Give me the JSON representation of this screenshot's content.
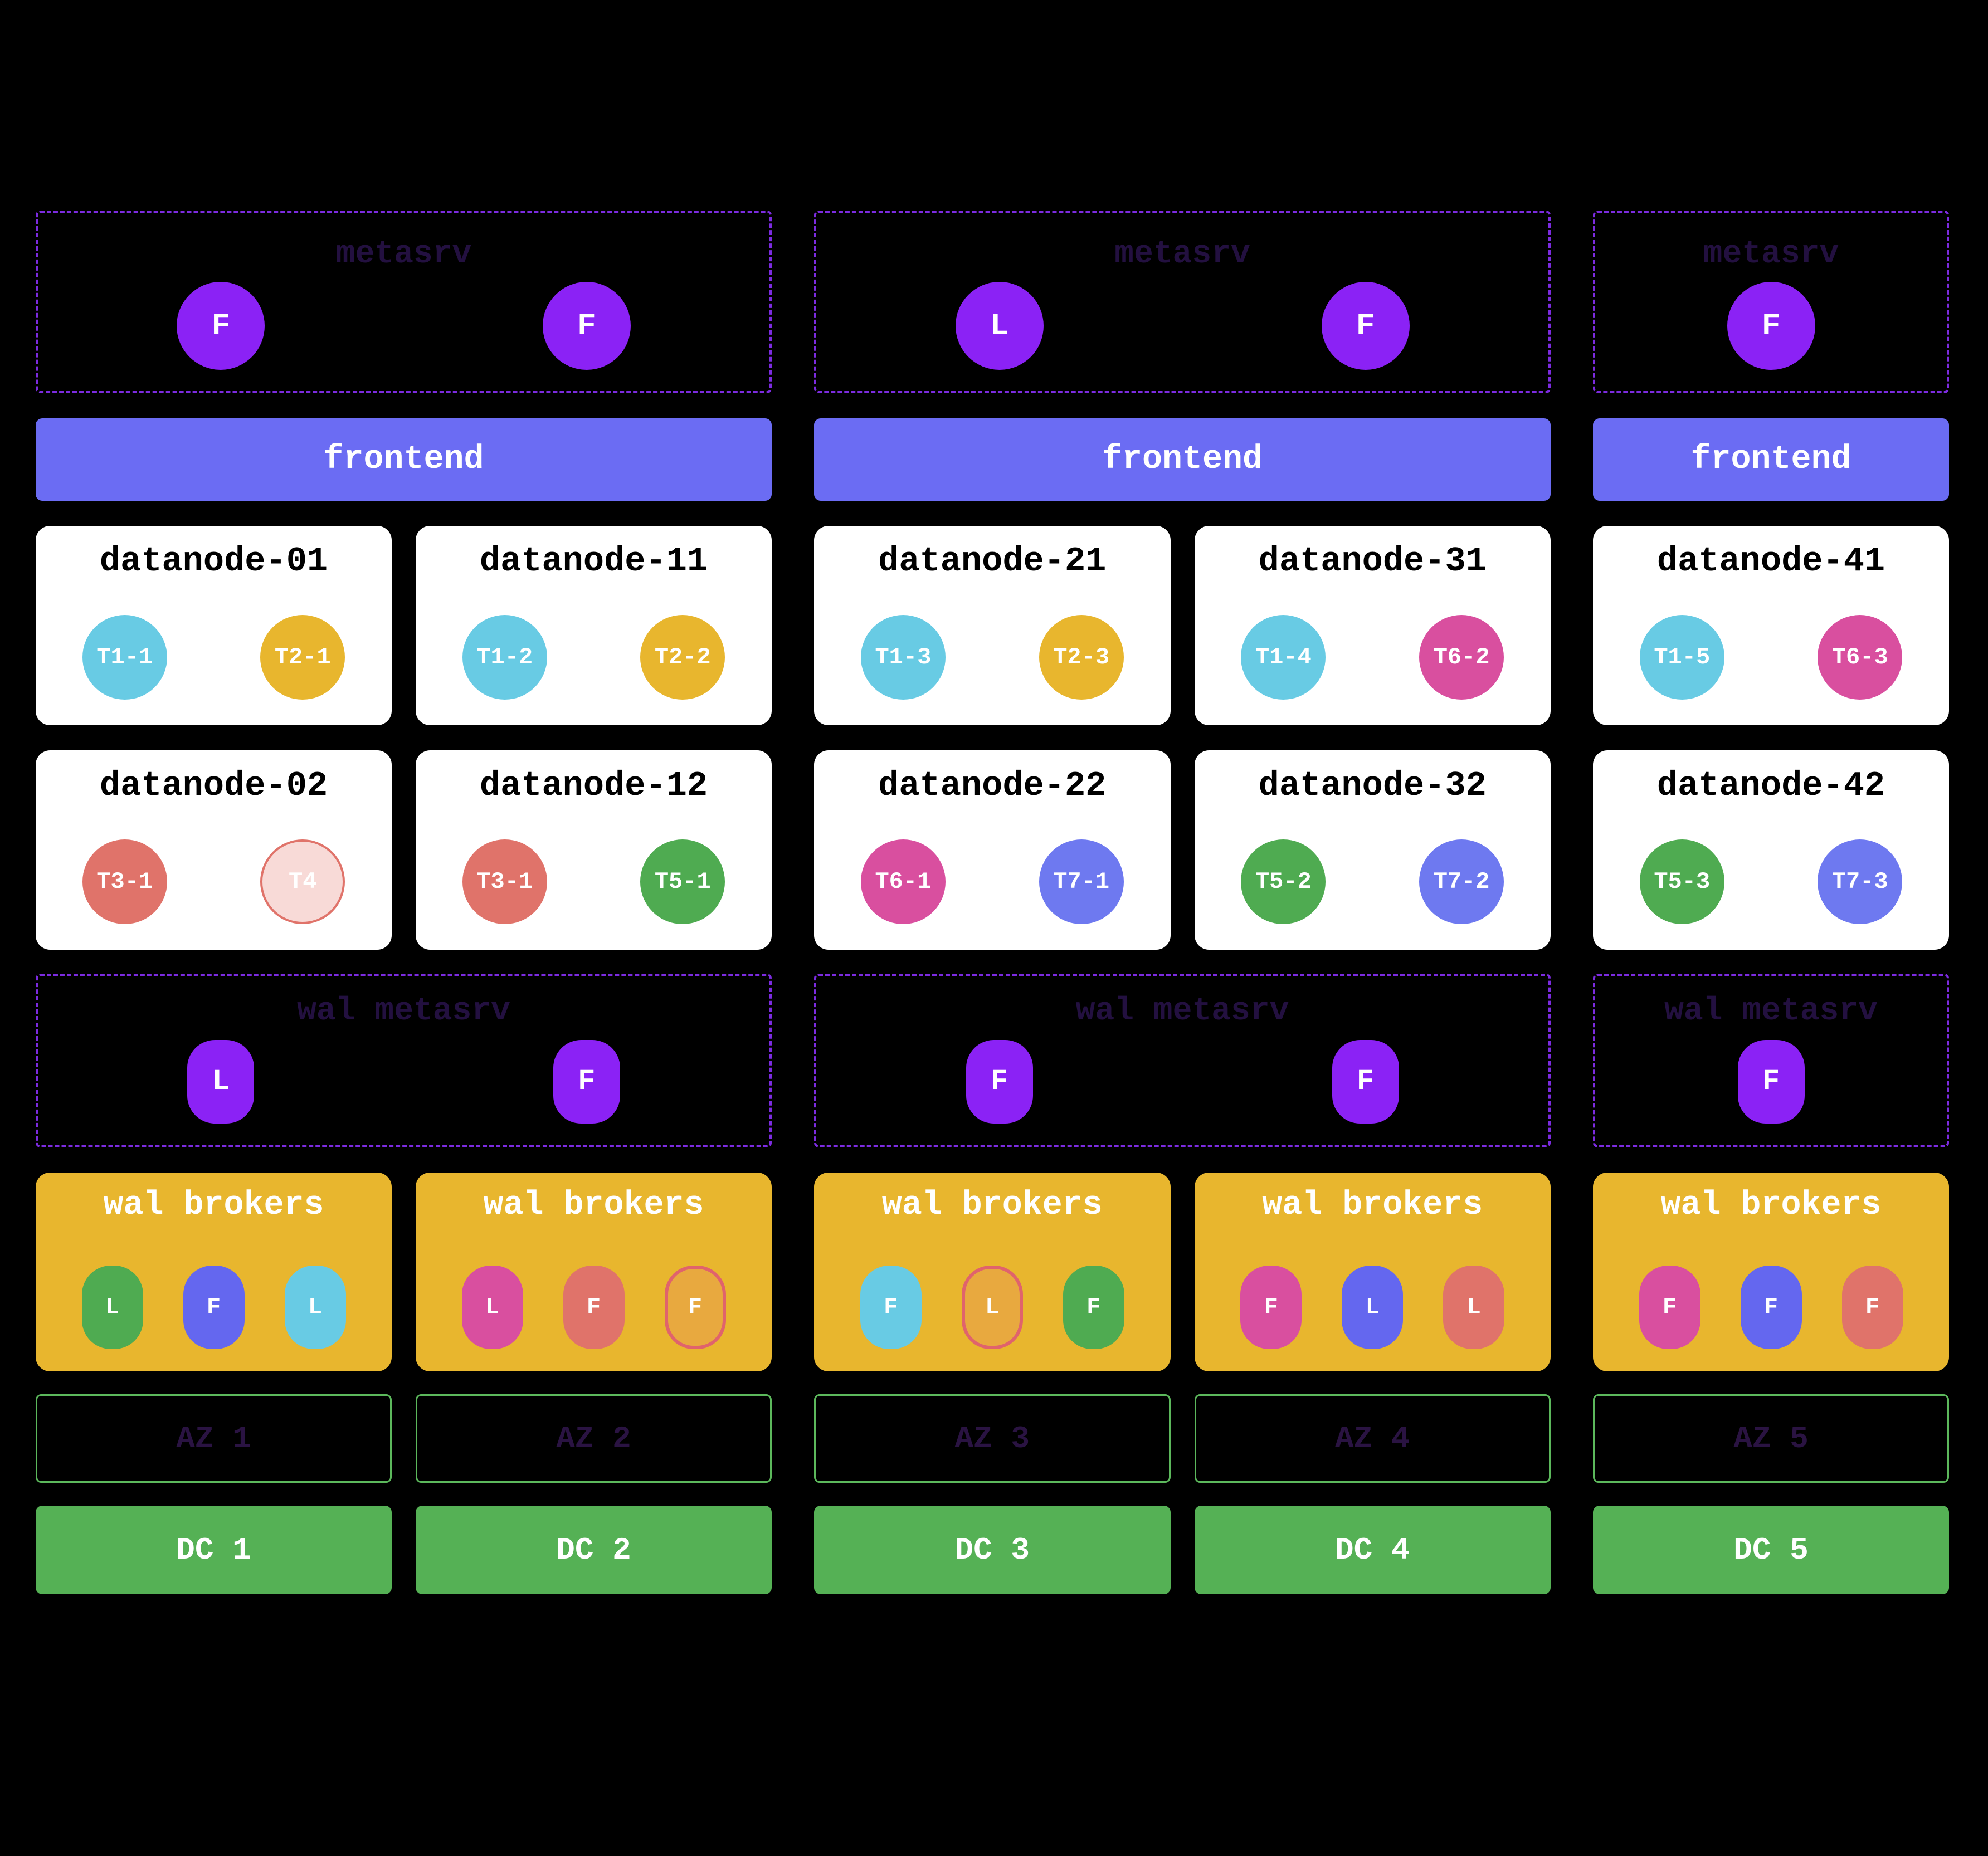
{
  "palette": {
    "background": "#000000",
    "node_purple": "#8b22f5",
    "dashed_border_purple": "#7c2be0",
    "dark_purple_title": "#231040",
    "frontend_blue": "#6b6cf3",
    "broker_box_gold": "#e8b62e",
    "cyan": "#68cbe4",
    "gold": "#e8b62e",
    "salmon": "#e0736a",
    "pink_light": "#f8dad7",
    "green": "#4fab51",
    "magenta": "#d94f9f",
    "periwinkle": "#6e79f0",
    "blue": "#6467ef",
    "orange": "#e8a93f",
    "az_border_green": "#5cb85c",
    "dc_green": "#55b155"
  },
  "groups": [
    {
      "metasrv": {
        "title": "metasrv",
        "nodes": [
          {
            "label": "F"
          },
          {
            "label": "F"
          }
        ]
      },
      "frontend": {
        "label": "frontend"
      },
      "datanode_rows": [
        [
          {
            "title": "datanode-01",
            "chips": [
              {
                "label": "T1-1",
                "color": "cyan"
              },
              {
                "label": "T2-1",
                "color": "gold"
              }
            ]
          },
          {
            "title": "datanode-11",
            "chips": [
              {
                "label": "T1-2",
                "color": "cyan"
              },
              {
                "label": "T2-2",
                "color": "gold"
              }
            ]
          }
        ],
        [
          {
            "title": "datanode-02",
            "chips": [
              {
                "label": "T3-1",
                "color": "salmon"
              },
              {
                "label": "T4",
                "color": "pink-outline"
              }
            ]
          },
          {
            "title": "datanode-12",
            "chips": [
              {
                "label": "T3-1",
                "color": "salmon"
              },
              {
                "label": "T5-1",
                "color": "green"
              }
            ]
          }
        ]
      ],
      "wal_metasrv": {
        "title": "wal metasrv",
        "nodes": [
          {
            "label": "L"
          },
          {
            "label": "F"
          }
        ]
      },
      "wal_brokers": [
        {
          "title": "wal brokers",
          "pills": [
            {
              "label": "L",
              "color": "green"
            },
            {
              "label": "F",
              "color": "blue"
            },
            {
              "label": "L",
              "color": "cyan"
            }
          ]
        },
        {
          "title": "wal brokers",
          "pills": [
            {
              "label": "L",
              "color": "magenta"
            },
            {
              "label": "F",
              "color": "salmon"
            },
            {
              "label": "F",
              "color": "orange-outline"
            }
          ]
        }
      ],
      "azs": [
        {
          "label": "AZ 1"
        },
        {
          "label": "AZ 2"
        }
      ],
      "dcs": [
        {
          "label": "DC 1"
        },
        {
          "label": "DC 2"
        }
      ]
    },
    {
      "metasrv": {
        "title": "metasrv",
        "nodes": [
          {
            "label": "L"
          },
          {
            "label": "F"
          }
        ]
      },
      "frontend": {
        "label": "frontend"
      },
      "datanode_rows": [
        [
          {
            "title": "datanode-21",
            "chips": [
              {
                "label": "T1-3",
                "color": "cyan"
              },
              {
                "label": "T2-3",
                "color": "gold"
              }
            ]
          },
          {
            "title": "datanode-31",
            "chips": [
              {
                "label": "T1-4",
                "color": "cyan"
              },
              {
                "label": "T6-2",
                "color": "magenta"
              }
            ]
          }
        ],
        [
          {
            "title": "datanode-22",
            "chips": [
              {
                "label": "T6-1",
                "color": "magenta"
              },
              {
                "label": "T7-1",
                "color": "periwinkle"
              }
            ]
          },
          {
            "title": "datanode-32",
            "chips": [
              {
                "label": "T5-2",
                "color": "green"
              },
              {
                "label": "T7-2",
                "color": "periwinkle"
              }
            ]
          }
        ]
      ],
      "wal_metasrv": {
        "title": "wal metasrv",
        "nodes": [
          {
            "label": "F"
          },
          {
            "label": "F"
          }
        ]
      },
      "wal_brokers": [
        {
          "title": "wal brokers",
          "pills": [
            {
              "label": "F",
              "color": "cyan"
            },
            {
              "label": "L",
              "color": "orange-outline"
            },
            {
              "label": "F",
              "color": "green"
            }
          ]
        },
        {
          "title": "wal brokers",
          "pills": [
            {
              "label": "F",
              "color": "magenta"
            },
            {
              "label": "L",
              "color": "blue"
            },
            {
              "label": "L",
              "color": "salmon"
            }
          ]
        }
      ],
      "azs": [
        {
          "label": "AZ 3"
        },
        {
          "label": "AZ 4"
        }
      ],
      "dcs": [
        {
          "label": "DC 3"
        },
        {
          "label": "DC 4"
        }
      ]
    },
    {
      "metasrv": {
        "title": "metasrv",
        "nodes": [
          {
            "label": "F"
          }
        ]
      },
      "frontend": {
        "label": "frontend"
      },
      "datanode_rows": [
        [
          {
            "title": "datanode-41",
            "chips": [
              {
                "label": "T1-5",
                "color": "cyan"
              },
              {
                "label": "T6-3",
                "color": "magenta"
              }
            ]
          }
        ],
        [
          {
            "title": "datanode-42",
            "chips": [
              {
                "label": "T5-3",
                "color": "green"
              },
              {
                "label": "T7-3",
                "color": "periwinkle"
              }
            ]
          }
        ]
      ],
      "wal_metasrv": {
        "title": "wal metasrv",
        "nodes": [
          {
            "label": "F"
          }
        ]
      },
      "wal_brokers": [
        {
          "title": "wal brokers",
          "pills": [
            {
              "label": "F",
              "color": "magenta"
            },
            {
              "label": "F",
              "color": "blue"
            },
            {
              "label": "F",
              "color": "salmon"
            }
          ]
        }
      ],
      "azs": [
        {
          "label": "AZ 5"
        }
      ],
      "dcs": [
        {
          "label": "DC 5"
        }
      ]
    }
  ]
}
